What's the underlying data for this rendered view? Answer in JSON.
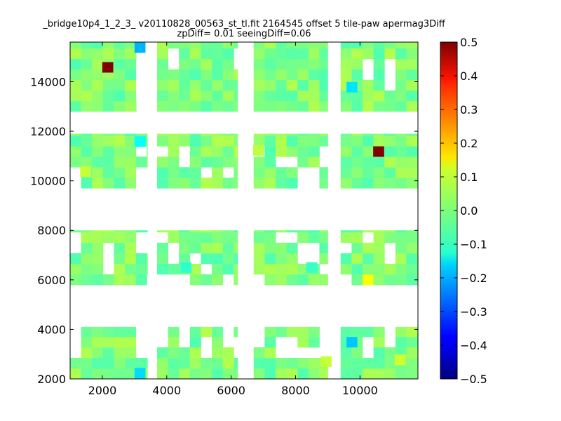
{
  "chart_data": {
    "type": "heatmap",
    "title": "_bridge10p4_1_2_3_ v20110828_00563_st_tl.fit 2164545 offset 5 tile-paw apermag3Diff",
    "subtitle": "zpDiff= 0.01 seeingDiff=0.06",
    "xlabel": "",
    "ylabel": "",
    "xlim": [
      1000,
      11800
    ],
    "ylim": [
      2000,
      15600
    ],
    "xticks": [
      2000,
      4000,
      6000,
      8000,
      10000
    ],
    "yticks": [
      2000,
      4000,
      6000,
      8000,
      10000,
      12000,
      14000
    ],
    "xtick_labels": [
      "2000",
      "4000",
      "6000",
      "8000",
      "10000"
    ],
    "ytick_labels": [
      "2000",
      "4000",
      "6000",
      "8000",
      "10000",
      "12000",
      "14000"
    ],
    "cell_size": [
      340,
      425
    ],
    "colormap": "jet",
    "colorbar": {
      "range": [
        -0.5,
        0.5
      ],
      "ticks": [
        0.5,
        0.4,
        0.3,
        0.2,
        0.1,
        0.0,
        -0.1,
        -0.2,
        -0.3,
        -0.4,
        -0.5
      ],
      "tick_labels": [
        "0.5",
        "0.4",
        "0.3",
        "0.2",
        "0.1",
        "0.0",
        "−0.1",
        "−0.2",
        "−0.3",
        "−0.4",
        "−0.5"
      ]
    },
    "grid": false,
    "detector_blocks": [
      {
        "x": [
          1000,
          3050
        ],
        "y": [
          12800,
          15600
        ]
      },
      {
        "x": [
          3700,
          6200
        ],
        "y": [
          12800,
          15600
        ]
      },
      {
        "x": [
          6700,
          9000
        ],
        "y": [
          12800,
          15600
        ]
      },
      {
        "x": [
          9400,
          11800
        ],
        "y": [
          12800,
          15600
        ]
      },
      {
        "x": [
          1000,
          3400
        ],
        "y": [
          9700,
          11900
        ]
      },
      {
        "x": [
          3700,
          6200
        ],
        "y": [
          9700,
          11900
        ]
      },
      {
        "x": [
          6700,
          9000
        ],
        "y": [
          9700,
          11900
        ]
      },
      {
        "x": [
          9400,
          11800
        ],
        "y": [
          9700,
          11900
        ]
      },
      {
        "x": [
          1000,
          3400
        ],
        "y": [
          5800,
          8000
        ]
      },
      {
        "x": [
          3700,
          6200
        ],
        "y": [
          5800,
          8000
        ]
      },
      {
        "x": [
          6700,
          9000
        ],
        "y": [
          5800,
          8000
        ]
      },
      {
        "x": [
          9400,
          11800
        ],
        "y": [
          5800,
          8000
        ]
      },
      {
        "x": [
          1000,
          3400
        ],
        "y": [
          2000,
          4100
        ]
      },
      {
        "x": [
          3700,
          6200
        ],
        "y": [
          2000,
          4100
        ]
      },
      {
        "x": [
          6700,
          9000
        ],
        "y": [
          2000,
          4100
        ]
      },
      {
        "x": [
          9400,
          11800
        ],
        "y": [
          2000,
          4100
        ]
      }
    ],
    "missing_cells": [
      [
        3400,
        14500
      ],
      [
        3400,
        14100
      ],
      [
        3400,
        13700
      ],
      [
        3400,
        13300
      ],
      [
        4100,
        15300
      ],
      [
        4100,
        14900
      ],
      [
        6400,
        15300
      ],
      [
        6400,
        14900
      ],
      [
        10200,
        14500
      ],
      [
        10900,
        14500
      ],
      [
        10900,
        14100
      ],
      [
        3200,
        11300
      ],
      [
        3900,
        11300
      ],
      [
        4600,
        11300
      ],
      [
        4600,
        10900
      ],
      [
        5300,
        10500
      ],
      [
        6000,
        10500
      ],
      [
        7000,
        11300
      ],
      [
        7700,
        10900
      ],
      [
        8400,
        10500
      ],
      [
        8400,
        10100
      ],
      [
        9100,
        11300
      ],
      [
        9100,
        10900
      ],
      [
        1200,
        10100
      ],
      [
        3400,
        10100
      ],
      [
        1200,
        7700
      ],
      [
        1200,
        7300
      ],
      [
        2300,
        7300
      ],
      [
        2300,
        6900
      ],
      [
        3400,
        7700
      ],
      [
        3400,
        7300
      ],
      [
        3700,
        7700
      ],
      [
        3700,
        6100
      ],
      [
        4100,
        7300
      ],
      [
        4100,
        6900
      ],
      [
        4800,
        6900
      ],
      [
        5300,
        6500
      ],
      [
        6000,
        6100
      ],
      [
        7000,
        6100
      ],
      [
        7700,
        7700
      ],
      [
        8400,
        7300
      ],
      [
        8400,
        6900
      ],
      [
        9100,
        6500
      ],
      [
        9400,
        7300
      ],
      [
        9400,
        6100
      ],
      [
        2300,
        6500
      ],
      [
        4400,
        6100
      ],
      [
        10200,
        7700
      ],
      [
        10900,
        7300
      ],
      [
        10900,
        6900
      ],
      [
        1200,
        3700
      ],
      [
        1200,
        3300
      ],
      [
        3400,
        3700
      ],
      [
        3400,
        3300
      ],
      [
        3400,
        2900
      ],
      [
        3900,
        3700
      ],
      [
        4600,
        3700
      ],
      [
        5300,
        3300
      ],
      [
        6000,
        3700
      ],
      [
        6300,
        3300
      ],
      [
        7700,
        3300
      ],
      [
        8400,
        2900
      ],
      [
        9100,
        3700
      ],
      [
        9100,
        3300
      ],
      [
        10200,
        3300
      ],
      [
        10900,
        3700
      ],
      [
        3700,
        3700
      ],
      [
        7000,
        3700
      ]
    ],
    "highlight_cells": [
      {
        "x": 2170,
        "y": 14580,
        "value": 0.5
      },
      {
        "x": 10580,
        "y": 11180,
        "value": 0.5
      },
      {
        "x": 3170,
        "y": 15380,
        "value": -0.2
      },
      {
        "x": 9750,
        "y": 13780,
        "value": -0.15
      },
      {
        "x": 3170,
        "y": 11580,
        "value": -0.12
      },
      {
        "x": 3170,
        "y": 2230,
        "value": -0.16
      },
      {
        "x": 9750,
        "y": 3480,
        "value": -0.18
      },
      {
        "x": 10250,
        "y": 6000,
        "value": 0.12
      },
      {
        "x": 1480,
        "y": 10370,
        "value": 0.07
      },
      {
        "x": 4600,
        "y": 6500,
        "value": -0.08
      },
      {
        "x": 6850,
        "y": 11230,
        "value": 0.06
      },
      {
        "x": 8950,
        "y": 2700,
        "value": 0.07
      },
      {
        "x": 11250,
        "y": 2770,
        "value": 0.08
      },
      {
        "x": 8500,
        "y": 6500,
        "value": -0.07
      }
    ],
    "base_value_range": [
      -0.05,
      0.05
    ]
  }
}
